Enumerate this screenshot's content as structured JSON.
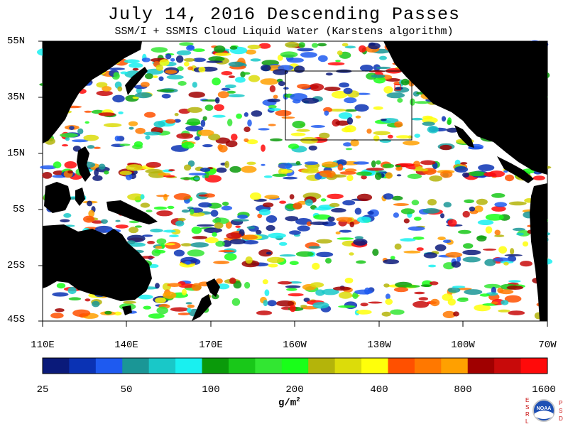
{
  "title": "July 14, 2016  Descending Passes",
  "subtitle": "SSM/I + SSMIS Cloud Liquid Water (Karstens algorithm)",
  "lat_labels": [
    "55N",
    "35N",
    "15N",
    "5S",
    "25S",
    "45S"
  ],
  "lon_labels": [
    "110E",
    "140E",
    "170E",
    "160W",
    "130W",
    "100W",
    "70W"
  ],
  "colorbar": {
    "colors": [
      "#0a1a7a",
      "#0a32b4",
      "#1e5af0",
      "#1a9696",
      "#19c8c8",
      "#19f0f0",
      "#0a9a0a",
      "#19c819",
      "#32e632",
      "#19ff19",
      "#b4b40a",
      "#dcdc0a",
      "#ffff0a",
      "#ff5000",
      "#ff7800",
      "#ffa000",
      "#a00000",
      "#c80a0a",
      "#ff0a0a"
    ],
    "tick_labels": [
      "25",
      "50",
      "100",
      "200",
      "400",
      "800",
      "1600"
    ],
    "units_main": "g/m",
    "units_exp": "2"
  },
  "logo": {
    "left_letters": [
      "E",
      "S",
      "R",
      "L"
    ],
    "right_letters": [
      "P",
      "S",
      "D"
    ],
    "center_text": "NOAA"
  },
  "colors": {
    "land": "#000000",
    "background": "#ffffff",
    "box": "#000000",
    "marker": "#ff0000"
  }
}
